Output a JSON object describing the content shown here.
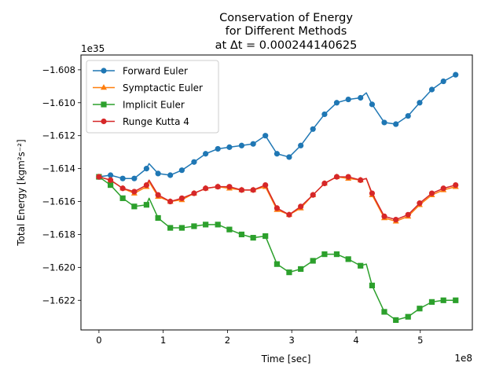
{
  "chart_data": {
    "type": "line",
    "title_lines": [
      "Conservation of Energy",
      "for Different Methods",
      "at Δt = 0.000244140625"
    ],
    "xlabel": "Time [sec]",
    "ylabel": "Total Energy [kgm²s⁻²]",
    "x_offset_label": "1e8",
    "y_offset_label": "1e35",
    "xlim": [
      -0.28,
      5.81
    ],
    "ylim": [
      -1.6238,
      -1.6071
    ],
    "x_ticks": [
      0,
      1,
      2,
      3,
      4,
      5
    ],
    "y_ticks": [
      -1.608,
      -1.61,
      -1.612,
      -1.614,
      -1.616,
      -1.618,
      -1.62,
      -1.622
    ],
    "x_tick_labels": [
      "0",
      "1",
      "2",
      "3",
      "4",
      "5"
    ],
    "y_tick_labels": [
      "−1.608",
      "−1.610",
      "−1.612",
      "−1.614",
      "−1.616",
      "−1.618",
      "−1.620",
      "−1.622"
    ],
    "legend_position": "upper-left",
    "grid": false,
    "series": [
      {
        "name": "Forward Euler",
        "color": "#1f77b4",
        "marker": "circle",
        "x": [
          0,
          0.18,
          0.37,
          0.55,
          0.74,
          0.78,
          0.92,
          1.11,
          1.29,
          1.48,
          1.66,
          1.85,
          2.03,
          2.22,
          2.4,
          2.59,
          2.77,
          2.96,
          3.14,
          3.33,
          3.51,
          3.7,
          3.88,
          4.07,
          4.16,
          4.25,
          4.44,
          4.62,
          4.81,
          4.99,
          5.18,
          5.36,
          5.55
        ],
        "y": [
          -1.6145,
          -1.6144,
          -1.6146,
          -1.6146,
          -1.614,
          -1.6137,
          -1.6143,
          -1.6144,
          -1.6141,
          -1.6136,
          -1.6131,
          -1.6128,
          -1.6127,
          -1.6126,
          -1.6125,
          -1.612,
          -1.6131,
          -1.6133,
          -1.6126,
          -1.6116,
          -1.6107,
          -1.61,
          -1.6098,
          -1.6097,
          -1.6094,
          -1.6101,
          -1.6112,
          -1.6113,
          -1.6108,
          -1.61,
          -1.6092,
          -1.6087,
          -1.6083
        ]
      },
      {
        "name": "Symptactic Euler",
        "color": "#ff7f0e",
        "marker": "triangle",
        "x": [
          0,
          0.18,
          0.37,
          0.55,
          0.74,
          0.78,
          0.92,
          1.11,
          1.29,
          1.48,
          1.66,
          1.85,
          2.03,
          2.22,
          2.4,
          2.59,
          2.77,
          2.96,
          3.14,
          3.33,
          3.51,
          3.7,
          3.88,
          4.07,
          4.16,
          4.25,
          4.44,
          4.62,
          4.81,
          4.99,
          5.18,
          5.36,
          5.55
        ],
        "y": [
          -1.6145,
          -1.6147,
          -1.6152,
          -1.6155,
          -1.6151,
          -1.6148,
          -1.6157,
          -1.616,
          -1.6159,
          -1.6155,
          -1.6152,
          -1.6151,
          -1.6152,
          -1.6153,
          -1.6153,
          -1.6151,
          -1.6165,
          -1.6168,
          -1.6164,
          -1.6156,
          -1.6149,
          -1.6145,
          -1.6146,
          -1.6147,
          -1.6146,
          -1.6156,
          -1.617,
          -1.6172,
          -1.6169,
          -1.6162,
          -1.6156,
          -1.6153,
          -1.6151
        ]
      },
      {
        "name": "Implicit Euler",
        "color": "#2ca02c",
        "marker": "square",
        "x": [
          0,
          0.18,
          0.37,
          0.55,
          0.74,
          0.78,
          0.92,
          1.11,
          1.29,
          1.48,
          1.66,
          1.85,
          2.03,
          2.22,
          2.4,
          2.59,
          2.77,
          2.96,
          3.14,
          3.33,
          3.51,
          3.7,
          3.88,
          4.07,
          4.16,
          4.25,
          4.44,
          4.62,
          4.81,
          4.99,
          5.18,
          5.36,
          5.55
        ],
        "y": [
          -1.6145,
          -1.615,
          -1.6158,
          -1.6163,
          -1.6162,
          -1.6158,
          -1.617,
          -1.6176,
          -1.6176,
          -1.6175,
          -1.6174,
          -1.6174,
          -1.6177,
          -1.618,
          -1.6182,
          -1.6181,
          -1.6198,
          -1.6203,
          -1.6201,
          -1.6196,
          -1.6192,
          -1.6192,
          -1.6195,
          -1.6199,
          -1.6198,
          -1.6211,
          -1.6227,
          -1.6232,
          -1.623,
          -1.6225,
          -1.6221,
          -1.622,
          -1.622
        ]
      },
      {
        "name": "Runge Kutta 4",
        "color": "#d62728",
        "marker": "circle",
        "x": [
          0,
          0.18,
          0.37,
          0.55,
          0.74,
          0.78,
          0.92,
          1.11,
          1.29,
          1.48,
          1.66,
          1.85,
          2.03,
          2.22,
          2.4,
          2.59,
          2.77,
          2.96,
          3.14,
          3.33,
          3.51,
          3.7,
          3.88,
          4.07,
          4.16,
          4.25,
          4.44,
          4.62,
          4.81,
          4.99,
          5.18,
          5.36,
          5.55
        ],
        "y": [
          -1.6145,
          -1.6147,
          -1.6152,
          -1.6154,
          -1.615,
          -1.6147,
          -1.6156,
          -1.616,
          -1.6158,
          -1.6155,
          -1.6152,
          -1.6151,
          -1.6151,
          -1.6153,
          -1.6153,
          -1.615,
          -1.6164,
          -1.6168,
          -1.6163,
          -1.6156,
          -1.6149,
          -1.6145,
          -1.6145,
          -1.6147,
          -1.6146,
          -1.6155,
          -1.6169,
          -1.6171,
          -1.6168,
          -1.6161,
          -1.6155,
          -1.6152,
          -1.615
        ]
      }
    ]
  }
}
